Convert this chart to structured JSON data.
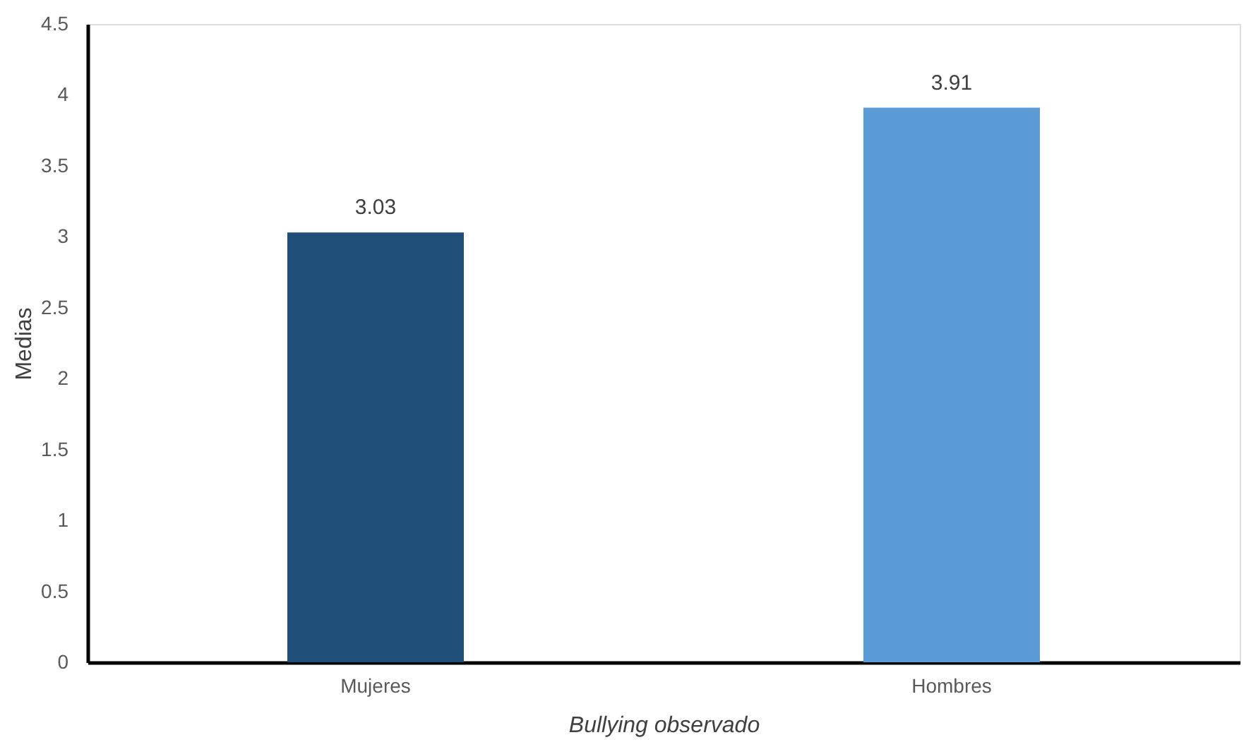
{
  "chart_data": {
    "type": "bar",
    "xlabel": "Bullying observado",
    "ylabel": "Medias",
    "categories": [
      "Mujeres",
      "Hombres"
    ],
    "values": [
      3.03,
      3.91
    ],
    "colors": [
      "#1f4e79",
      "#5b9bd5"
    ],
    "ylim": [
      0,
      4.5
    ],
    "yticks": [
      0,
      0.5,
      1,
      1.5,
      2,
      2.5,
      3,
      3.5,
      4,
      4.5
    ],
    "data_labels": true,
    "grid": false
  }
}
